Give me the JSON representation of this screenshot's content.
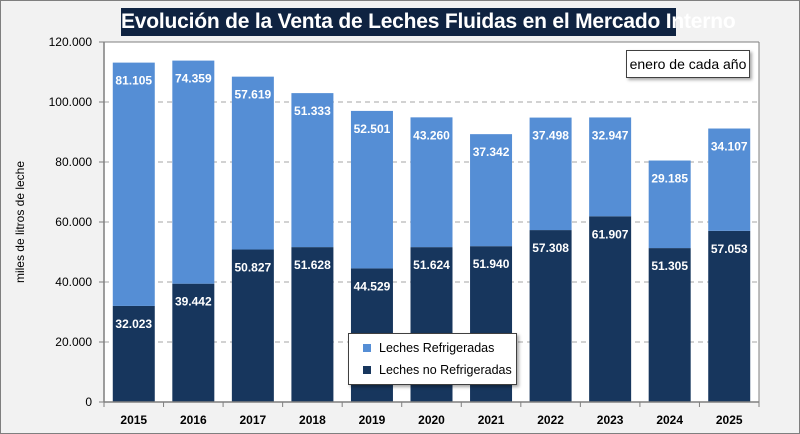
{
  "chart_data": {
    "type": "bar",
    "stacked": true,
    "title": "Evolución de la Venta de Leches Fluidas en el Mercado Interno",
    "subtitle_note": "enero de cada año",
    "xlabel": "",
    "ylabel": "miles de litros de leche",
    "ylim": [
      0,
      120000
    ],
    "yticks": [
      0,
      20000,
      40000,
      60000,
      80000,
      100000,
      120000
    ],
    "ytick_labels": [
      "0",
      "20.000",
      "40.000",
      "60.000",
      "80.000",
      "100.000",
      "120.000"
    ],
    "grid": "horizontal-dashed",
    "legend_position": "bottom-center",
    "categories": [
      "2015",
      "2016",
      "2017",
      "2018",
      "2019",
      "2020",
      "2021",
      "2022",
      "2023",
      "2024",
      "2025"
    ],
    "series": [
      {
        "name": "Leches no Refrigeradas",
        "color": "#17365d",
        "values": [
          32023,
          39442,
          50827,
          51628,
          44529,
          51624,
          51940,
          57308,
          61907,
          51305,
          57053
        ],
        "labels": [
          "32.023",
          "39.442",
          "50.827",
          "51.628",
          "44.529",
          "51.624",
          "51.940",
          "57.308",
          "61.907",
          "51.305",
          "57.053"
        ]
      },
      {
        "name": "Leches Refrigeradas",
        "color": "#558ed5",
        "values": [
          81105,
          74359,
          57619,
          51333,
          52501,
          43260,
          37342,
          37498,
          32947,
          29185,
          34107
        ],
        "labels": [
          "81.105",
          "74.359",
          "57.619",
          "51.333",
          "52.501",
          "43.260",
          "37.342",
          "37.498",
          "32.947",
          "29.185",
          "34.107"
        ]
      }
    ],
    "legend_order": [
      "Leches Refrigeradas",
      "Leches no Refrigeradas"
    ]
  },
  "colors": {
    "title_bg": "#0f2341",
    "plot_bg": "#ffffff",
    "chart_bg": "#f2f2f2",
    "grid": "#a6a6a6"
  }
}
